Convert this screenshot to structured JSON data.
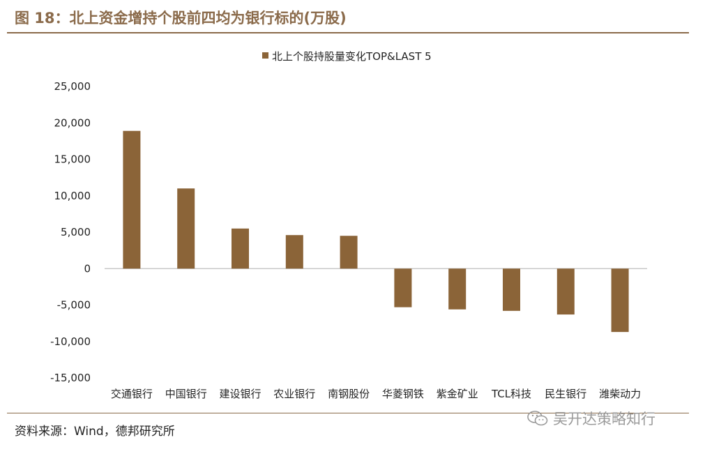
{
  "figure": {
    "title": "图 18：北上资金增持个股前四均为银行标的(万股)",
    "source": "资料来源：Wind，德邦研究所",
    "watermark": "吴开达策略知行",
    "watermark_icon": "wechat-icon"
  },
  "colors": {
    "bar": "#8b6438",
    "accent": "#8a6a4a",
    "axis": "#bfbfbf"
  },
  "chart_data": {
    "type": "bar",
    "title": "",
    "xlabel": "",
    "ylabel": "",
    "legend": "top-center",
    "grid": false,
    "ylim": [
      -15000,
      25000
    ],
    "yticks": [
      25000,
      20000,
      15000,
      10000,
      5000,
      0,
      -5000,
      -10000,
      -15000
    ],
    "ytick_labels": [
      "25,000",
      "20,000",
      "15,000",
      "10,000",
      "5,000",
      "0",
      "-5,000",
      "-10,000",
      "-15,000"
    ],
    "categories": [
      "交通银行",
      "中国银行",
      "建设银行",
      "农业银行",
      "南钢股份",
      "华菱钢铁",
      "紫金矿业",
      "TCL科技",
      "民生银行",
      "潍柴动力"
    ],
    "series": [
      {
        "name": "北上个股持股量变化TOP&LAST 5",
        "values": [
          18900,
          11000,
          5500,
          4600,
          4500,
          -5300,
          -5600,
          -5800,
          -6300,
          -8700
        ]
      }
    ]
  }
}
